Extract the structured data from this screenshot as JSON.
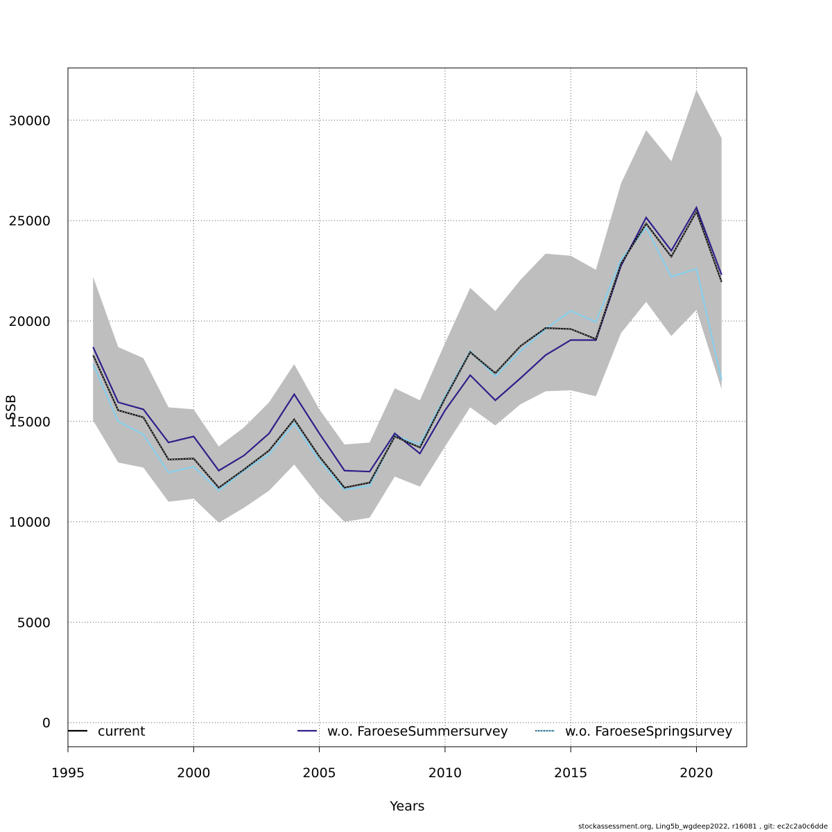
{
  "footer": "stockassessment.org, Ling5b_wgdeep2022, r16081 , git: ec2c2a0c6dde",
  "chart_data": {
    "type": "line",
    "xlabel": "Years",
    "ylabel": "SSB",
    "xlim": [
      1995,
      2022
    ],
    "ylim": [
      -1200,
      32600
    ],
    "xticks": [
      1995,
      2000,
      2005,
      2010,
      2015,
      2020
    ],
    "yticks": [
      0,
      5000,
      10000,
      15000,
      20000,
      25000,
      30000
    ],
    "grid": true,
    "legend_position": "bottom",
    "x": [
      1996,
      1997,
      1998,
      1999,
      2000,
      2001,
      2002,
      2003,
      2004,
      2005,
      2006,
      2007,
      2008,
      2009,
      2010,
      2011,
      2012,
      2013,
      2014,
      2015,
      2016,
      2017,
      2018,
      2019,
      2020,
      2021
    ],
    "band": {
      "color": "#bebebe",
      "upper": [
        22200,
        18700,
        18150,
        15700,
        15600,
        13750,
        14700,
        15950,
        17850,
        15600,
        13850,
        13950,
        16650,
        16050,
        18900,
        21650,
        20500,
        22050,
        23350,
        23250,
        22550,
        26850,
        29500,
        27950,
        31500,
        29100
      ],
      "lower": [
        15050,
        12950,
        12700,
        11000,
        11150,
        9950,
        10700,
        11550,
        12850,
        11250,
        10000,
        10200,
        12250,
        11750,
        13750,
        15700,
        14800,
        15850,
        16500,
        16550,
        16250,
        19400,
        20950,
        19250,
        20550,
        16600
      ]
    },
    "series": [
      {
        "name": "current",
        "color": "#000000",
        "style": "solid-dotted",
        "values": [
          18300,
          15550,
          15200,
          13100,
          13150,
          11700,
          12600,
          13550,
          15100,
          13250,
          11700,
          11950,
          14250,
          13700,
          16150,
          18450,
          17400,
          18750,
          19650,
          19600,
          19100,
          22850,
          24850,
          23200,
          25450,
          21950
        ]
      },
      {
        "name": "w.o. FaroeseSummersurvey",
        "color": "#2e1e8a",
        "style": "solid",
        "values": [
          18700,
          15950,
          15600,
          13950,
          14250,
          12550,
          13300,
          14400,
          16350,
          14400,
          12550,
          12500,
          14400,
          13400,
          15550,
          17300,
          16050,
          17150,
          18300,
          19050,
          19050,
          22750,
          25150,
          23500,
          25650,
          22300
        ]
      },
      {
        "name": "w.o. FaroeseSpringsurvey",
        "color": "#87ceeb",
        "style": "solid",
        "values": [
          17850,
          15000,
          14350,
          12450,
          12750,
          11550,
          12550,
          13350,
          14900,
          13050,
          11600,
          11800,
          14300,
          13850,
          16250,
          18500,
          17250,
          18500,
          19600,
          20500,
          19950,
          23050,
          24650,
          22200,
          22600,
          17050
        ]
      }
    ]
  }
}
